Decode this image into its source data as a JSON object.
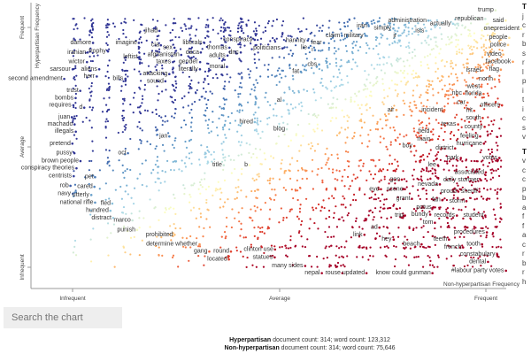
{
  "search": {
    "placeholder": "Search the chart"
  },
  "stats": [
    {
      "category": "Hyperpartisan",
      "text": " document count: 314; word count: 123,312"
    },
    {
      "category": "Non-hyperpartisan",
      "text": " document count: 314; word count: 75,646"
    }
  ],
  "sidebar": {
    "sections": [
      {
        "heading": "T",
        "lines": [
          "j",
          "c",
          "r",
          "b",
          "s",
          "r",
          "l",
          "p",
          "i",
          "t",
          "i",
          "c",
          "s",
          "v"
        ]
      },
      {
        "heading": "T",
        "lines": [
          "v",
          "c",
          "c",
          "p",
          "b",
          "a",
          "f",
          "f",
          "a",
          "c",
          "r",
          "b",
          "r",
          "h"
        ]
      }
    ]
  },
  "chart_data": {
    "type": "scatter",
    "xlabel": "Non-hyperpartisan Frequency",
    "ylabel": "Hyperpartisan Frequency",
    "x_ticks": [
      "Infrequent",
      "Average",
      "Frequent"
    ],
    "y_ticks": [
      "Infrequent",
      "Average",
      "Frequent"
    ],
    "scale_note": "frequency rank: 0 = Infrequent, 50 = Average, 100 = Frequent",
    "colors": {
      "hyperpartisan": "#313695",
      "neutral": "#ffffbf",
      "non_hyperpartisan": "#a50026"
    },
    "labeled_terms": [
      {
        "term": "jihad",
        "x": 19,
        "y": 98
      },
      {
        "term": "damore",
        "x": 2,
        "y": 93
      },
      {
        "term": "trophy",
        "x": 6,
        "y": 92
      },
      {
        "term": "iranian",
        "x": 1,
        "y": 89
      },
      {
        "term": "wictor",
        "x": 1,
        "y": 85
      },
      {
        "term": "sarsour",
        "x": -3,
        "y": 82
      },
      {
        "term": "second amendment",
        "x": -9,
        "y": 78
      },
      {
        "term": "trust",
        "x": 0,
        "y": 73
      },
      {
        "term": "bombs",
        "x": -2,
        "y": 70
      },
      {
        "term": "requires",
        "x": -3,
        "y": 67
      },
      {
        "term": "d",
        "x": 2,
        "y": 66
      },
      {
        "term": "juan",
        "x": -2,
        "y": 62
      },
      {
        "term": "machado",
        "x": -3,
        "y": 59
      },
      {
        "term": "illegals",
        "x": -2,
        "y": 56
      },
      {
        "term": "pretend",
        "x": -3,
        "y": 51
      },
      {
        "term": "pussy",
        "x": -2,
        "y": 47
      },
      {
        "term": "brown people",
        "x": -3,
        "y": 45
      },
      {
        "term": "conspiracy theories",
        "x": -6,
        "y": 42
      },
      {
        "term": "centrists",
        "x": -3,
        "y": 40
      },
      {
        "term": "rob",
        "x": -2,
        "y": 36
      },
      {
        "term": "navy",
        "x": -2,
        "y": 34
      },
      {
        "term": "national rifle",
        "x": 1,
        "y": 29
      },
      {
        "term": "utterly",
        "x": 2,
        "y": 27
      },
      {
        "term": "hundred",
        "x": 6,
        "y": 23
      },
      {
        "term": "distract",
        "x": 7,
        "y": 20
      },
      {
        "term": "fled",
        "x": 8,
        "y": 26
      },
      {
        "term": "cared",
        "x": 3,
        "y": 33
      },
      {
        "term": "pet",
        "x": 4,
        "y": 37
      },
      {
        "term": "oct",
        "x": 12,
        "y": 47
      },
      {
        "term": "aliens",
        "x": 4,
        "y": 82
      },
      {
        "term": "herr",
        "x": 4,
        "y": 79
      },
      {
        "term": "bills",
        "x": 11,
        "y": 78
      },
      {
        "term": "imagine",
        "x": 13,
        "y": 93
      },
      {
        "term": "leftist",
        "x": 14,
        "y": 87
      },
      {
        "term": "cia",
        "x": 20,
        "y": 92
      },
      {
        "term": "sex",
        "x": 23,
        "y": 91
      },
      {
        "term": "afghanistan",
        "x": 22,
        "y": 88
      },
      {
        "term": "taxes",
        "x": 22,
        "y": 85
      },
      {
        "term": "attacking",
        "x": 20,
        "y": 80
      },
      {
        "term": "sound",
        "x": 20,
        "y": 77
      },
      {
        "term": "liberals",
        "x": 29,
        "y": 93
      },
      {
        "term": "daca",
        "x": 29,
        "y": 89
      },
      {
        "term": "gender",
        "x": 28,
        "y": 85
      },
      {
        "term": "literally",
        "x": 28,
        "y": 82
      },
      {
        "term": "thomas",
        "x": 35,
        "y": 91
      },
      {
        "term": "adults",
        "x": 35,
        "y": 89
      },
      {
        "term": "moral",
        "x": 35,
        "y": 83
      },
      {
        "term": "dnc",
        "x": 39,
        "y": 89
      },
      {
        "term": "conspiracy",
        "x": 40,
        "y": 93
      },
      {
        "term": "politicians",
        "x": 47,
        "y": 92
      },
      {
        "term": "hannity",
        "x": 54,
        "y": 94
      },
      {
        "term": "lie",
        "x": 56,
        "y": 91
      },
      {
        "term": "fear",
        "x": 59,
        "y": 93
      },
      {
        "term": "i",
        "x": 58,
        "y": 90
      },
      {
        "term": "cbs",
        "x": 58,
        "y": 84
      },
      {
        "term": "fat",
        "x": 54,
        "y": 81
      },
      {
        "term": "claim",
        "x": 63,
        "y": 96
      },
      {
        "term": "military",
        "x": 68,
        "y": 96
      },
      {
        "term": "iran",
        "x": 70,
        "y": 100
      },
      {
        "term": "simply",
        "x": 75,
        "y": 99
      },
      {
        "term": "jr",
        "x": 78,
        "y": 96
      },
      {
        "term": "administration",
        "x": 81,
        "y": 101
      },
      {
        "term": "isis",
        "x": 84,
        "y": 98
      },
      {
        "term": "actually",
        "x": 89,
        "y": 101
      },
      {
        "term": "republican",
        "x": 96,
        "y": 103
      },
      {
        "term": "trump",
        "x": 100,
        "y": 104
      },
      {
        "term": "onepresident",
        "x": 105,
        "y": 104
      },
      {
        "term": "said",
        "x": 103,
        "y": 101
      },
      {
        "term": "people",
        "x": 103,
        "y": 99
      },
      {
        "term": "police",
        "x": 103,
        "y": 96
      },
      {
        "term": "video",
        "x": 102,
        "y": 92
      },
      {
        "term": "facebook",
        "x": 103,
        "y": 89
      },
      {
        "term": "flag",
        "x": 102,
        "y": 87
      },
      {
        "term": "north",
        "x": 100,
        "y": 83
      },
      {
        "term": "israel",
        "x": 97,
        "y": 79
      },
      {
        "term": "west",
        "x": 97,
        "y": 76
      },
      {
        "term": "florida",
        "x": 97,
        "y": 73
      },
      {
        "term": "car",
        "x": 94,
        "y": 72
      },
      {
        "term": "nbc",
        "x": 93,
        "y": 68
      },
      {
        "term": "officers",
        "x": 101,
        "y": 67
      },
      {
        "term": "hit",
        "x": 96,
        "y": 66
      },
      {
        "term": "south",
        "x": 97,
        "y": 63
      },
      {
        "term": "incident",
        "x": 87,
        "y": 65
      },
      {
        "term": "air",
        "x": 77,
        "y": 65
      },
      {
        "term": "al",
        "x": 50,
        "y": 69
      },
      {
        "term": "hired",
        "x": 42,
        "y": 60
      },
      {
        "term": "blog",
        "x": 50,
        "y": 57
      },
      {
        "term": "jan",
        "x": 22,
        "y": 54
      },
      {
        "term": "title",
        "x": 35,
        "y": 42
      },
      {
        "term": "b",
        "x": 42,
        "y": 42
      },
      {
        "term": "texas",
        "x": 91,
        "y": 59
      },
      {
        "term": "county",
        "x": 97,
        "y": 58
      },
      {
        "term": "field",
        "x": 85,
        "y": 56
      },
      {
        "term": "main",
        "x": 85,
        "y": 54
      },
      {
        "term": "feeling",
        "x": 96,
        "y": 54
      },
      {
        "term": "boy",
        "x": 81,
        "y": 50
      },
      {
        "term": "district",
        "x": 90,
        "y": 49
      },
      {
        "term": "hurricane",
        "x": 96,
        "y": 51
      },
      {
        "term": "park",
        "x": 92,
        "y": 45
      },
      {
        "term": "votes",
        "x": 101,
        "y": 45
      },
      {
        "term": "lee",
        "x": 87,
        "y": 42
      },
      {
        "term": "associated",
        "x": 96,
        "y": 39
      },
      {
        "term": "daily stormer",
        "x": 94,
        "y": 37
      },
      {
        "term": "gon",
        "x": 78,
        "y": 36
      },
      {
        "term": "eye",
        "x": 73,
        "y": 32
      },
      {
        "term": "scene",
        "x": 78,
        "y": 32
      },
      {
        "term": "nevada",
        "x": 86,
        "y": 34
      },
      {
        "term": "proud",
        "x": 91,
        "y": 31
      },
      {
        "term": "fan",
        "x": 88,
        "y": 30
      },
      {
        "term": "sheriff",
        "x": 96,
        "y": 31
      },
      {
        "term": "grant",
        "x": 80,
        "y": 28
      },
      {
        "term": "potus",
        "x": 85,
        "y": 27
      },
      {
        "term": "bundy",
        "x": 84,
        "y": 24
      },
      {
        "term": "storm",
        "x": 93,
        "y": 27
      },
      {
        "term": "records",
        "x": 90,
        "y": 21
      },
      {
        "term": "student",
        "x": 97,
        "y": 21
      },
      {
        "term": "trip",
        "x": 79,
        "y": 21
      },
      {
        "term": "tom",
        "x": 86,
        "y": 18
      },
      {
        "term": "ad",
        "x": 73,
        "y": 16
      },
      {
        "term": "procedures",
        "x": 96,
        "y": 14
      },
      {
        "term": "link",
        "x": 69,
        "y": 13
      },
      {
        "term": "hey",
        "x": 76,
        "y": 11
      },
      {
        "term": "teeth",
        "x": 89,
        "y": 11
      },
      {
        "term": "beach",
        "x": 82,
        "y": 9
      },
      {
        "term": "french",
        "x": 92,
        "y": 9
      },
      {
        "term": "tooth",
        "x": 97,
        "y": 9
      },
      {
        "term": "constabulary",
        "x": 98,
        "y": 6
      },
      {
        "term": "dental",
        "x": 98,
        "y": 3
      },
      {
        "term": "nepal",
        "x": 58,
        "y": -3
      },
      {
        "term": "rouse",
        "x": 63,
        "y": -3
      },
      {
        "term": "updated",
        "x": 68,
        "y": -3
      },
      {
        "term": "know could gunman",
        "x": 80,
        "y": -3
      },
      {
        "term": "#labour party votes",
        "x": 98,
        "y": -2
      },
      {
        "term": "many sides",
        "x": 52,
        "y": 0
      },
      {
        "term": "statues",
        "x": 46,
        "y": 1
      },
      {
        "term": "clinton use",
        "x": 45,
        "y": 3
      },
      {
        "term": "round",
        "x": 36,
        "y": 6
      },
      {
        "term": "located",
        "x": 35,
        "y": 4
      },
      {
        "term": "gang",
        "x": 31,
        "y": 6
      },
      {
        "term": "determine whether",
        "x": 24,
        "y": 9
      },
      {
        "term": "prohibited",
        "x": 21,
        "y": 13
      },
      {
        "term": "punish",
        "x": 13,
        "y": 15
      },
      {
        "term": "marco",
        "x": 12,
        "y": 19
      }
    ]
  }
}
